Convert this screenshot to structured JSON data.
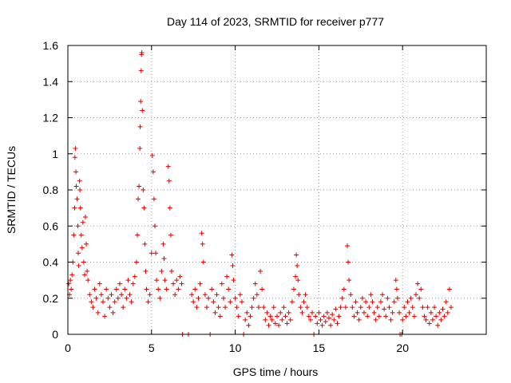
{
  "chart_data": {
    "type": "scatter",
    "title": "Day 114 of 2023, SRMTID for receiver p777",
    "xlabel": "GPS time / hours",
    "ylabel": "SRMTID / TECUs",
    "xlim": [
      0,
      25
    ],
    "ylim": [
      0,
      1.6
    ],
    "xticks": [
      0,
      5,
      10,
      15,
      20
    ],
    "xtick_labels": [
      "0",
      "5",
      "10",
      "15",
      "20"
    ],
    "yticks": [
      0,
      0.2,
      0.4,
      0.6,
      0.8,
      1,
      1.2,
      1.4,
      1.6
    ],
    "ytick_labels": [
      "0",
      "0.2",
      "0.4",
      "0.6",
      "0.8",
      "1",
      "1.2",
      "1.4",
      "1.6"
    ],
    "grid": true,
    "marker": "+",
    "color": "#dd0000",
    "series": [
      {
        "name": "SRMTID",
        "points": [
          [
            0.05,
            0.28
          ],
          [
            0.1,
            0.22
          ],
          [
            0.15,
            0.3
          ],
          [
            0.2,
            0.25
          ],
          [
            0.25,
            0.33
          ],
          [
            0.3,
            0.4
          ],
          [
            0.35,
            0.55
          ],
          [
            0.4,
            0.7
          ],
          [
            0.42,
            0.98
          ],
          [
            0.45,
            1.03
          ],
          [
            0.48,
            0.9
          ],
          [
            0.5,
            0.82
          ],
          [
            0.55,
            0.75
          ],
          [
            0.6,
            0.6
          ],
          [
            0.62,
            0.45
          ],
          [
            0.65,
            0.38
          ],
          [
            0.7,
            0.85
          ],
          [
            0.72,
            0.8
          ],
          [
            0.75,
            0.7
          ],
          [
            0.8,
            0.55
          ],
          [
            0.85,
            0.48
          ],
          [
            0.9,
            0.62
          ],
          [
            0.95,
            0.4
          ],
          [
            1.0,
            0.33
          ],
          [
            1.05,
            0.65
          ],
          [
            1.1,
            0.5
          ],
          [
            1.15,
            0.35
          ],
          [
            1.2,
            0.3
          ],
          [
            1.3,
            0.22
          ],
          [
            1.4,
            0.18
          ],
          [
            1.5,
            0.15
          ],
          [
            1.6,
            0.25
          ],
          [
            1.7,
            0.2
          ],
          [
            1.8,
            0.12
          ],
          [
            1.9,
            0.28
          ],
          [
            2.0,
            0.22
          ],
          [
            2.1,
            0.18
          ],
          [
            2.2,
            0.1
          ],
          [
            2.3,
            0.25
          ],
          [
            2.4,
            0.2
          ],
          [
            2.5,
            0.15
          ],
          [
            2.6,
            0.22
          ],
          [
            2.7,
            0.12
          ],
          [
            2.8,
            0.18
          ],
          [
            2.9,
            0.25
          ],
          [
            3.0,
            0.2
          ],
          [
            3.1,
            0.28
          ],
          [
            3.2,
            0.22
          ],
          [
            3.3,
            0.15
          ],
          [
            3.4,
            0.25
          ],
          [
            3.5,
            0.2
          ],
          [
            3.6,
            0.3
          ],
          [
            3.7,
            0.22
          ],
          [
            3.8,
            0.18
          ],
          [
            3.9,
            0.28
          ],
          [
            4.0,
            0.32
          ],
          [
            4.1,
            0.4
          ],
          [
            4.15,
            0.55
          ],
          [
            4.2,
            0.75
          ],
          [
            4.25,
            0.82
          ],
          [
            4.3,
            1.03
          ],
          [
            4.32,
            1.15
          ],
          [
            4.35,
            1.29
          ],
          [
            4.38,
            1.46
          ],
          [
            4.4,
            1.55
          ],
          [
            4.42,
            1.56
          ],
          [
            4.45,
            1.24
          ],
          [
            4.5,
            0.8
          ],
          [
            4.55,
            0.7
          ],
          [
            4.6,
            0.5
          ],
          [
            4.65,
            0.35
          ],
          [
            4.7,
            0.25
          ],
          [
            4.8,
            0.18
          ],
          [
            4.9,
            0.22
          ],
          [
            5.0,
            0.45
          ],
          [
            5.05,
            0.99
          ],
          [
            5.1,
            0.9
          ],
          [
            5.15,
            0.75
          ],
          [
            5.2,
            0.6
          ],
          [
            5.25,
            0.45
          ],
          [
            5.3,
            0.3
          ],
          [
            5.4,
            0.25
          ],
          [
            5.5,
            0.2
          ],
          [
            5.6,
            0.35
          ],
          [
            5.7,
            0.5
          ],
          [
            5.75,
            0.42
          ],
          [
            5.8,
            0.3
          ],
          [
            5.9,
            0.25
          ],
          [
            6.0,
            0.93
          ],
          [
            6.05,
            0.85
          ],
          [
            6.1,
            0.7
          ],
          [
            6.15,
            0.55
          ],
          [
            6.2,
            0.35
          ],
          [
            6.3,
            0.28
          ],
          [
            6.4,
            0.22
          ],
          [
            6.5,
            0.3
          ],
          [
            6.6,
            0.25
          ],
          [
            6.7,
            0.32
          ],
          [
            6.8,
            0.28
          ],
          [
            6.85,
            0.0
          ],
          [
            7.2,
            0.0
          ],
          [
            7.4,
            0.22
          ],
          [
            7.5,
            0.18
          ],
          [
            7.6,
            0.25
          ],
          [
            7.7,
            0.15
          ],
          [
            7.8,
            0.2
          ],
          [
            7.9,
            0.28
          ],
          [
            8.0,
            0.56
          ],
          [
            8.05,
            0.5
          ],
          [
            8.1,
            0.4
          ],
          [
            8.2,
            0.22
          ],
          [
            8.3,
            0.15
          ],
          [
            8.4,
            0.2
          ],
          [
            8.5,
            0.0
          ],
          [
            8.6,
            0.25
          ],
          [
            8.7,
            0.18
          ],
          [
            8.8,
            0.12
          ],
          [
            8.9,
            0.22
          ],
          [
            9.0,
            0.15
          ],
          [
            9.1,
            0.1
          ],
          [
            9.2,
            0.28
          ],
          [
            9.3,
            0.2
          ],
          [
            9.4,
            0.15
          ],
          [
            9.5,
            0.32
          ],
          [
            9.6,
            0.25
          ],
          [
            9.7,
            0.18
          ],
          [
            9.8,
            0.44
          ],
          [
            9.85,
            0.38
          ],
          [
            9.9,
            0.3
          ],
          [
            10.0,
            0.2
          ],
          [
            10.1,
            0.15
          ],
          [
            10.2,
            0.1
          ],
          [
            10.3,
            0.22
          ],
          [
            10.4,
            0.18
          ],
          [
            10.5,
            0.0
          ],
          [
            10.6,
            0.08
          ],
          [
            10.7,
            0.12
          ],
          [
            10.8,
            0.05
          ],
          [
            10.9,
            0.1
          ],
          [
            11.0,
            0.15
          ],
          [
            11.1,
            0.2
          ],
          [
            11.2,
            0.28
          ],
          [
            11.3,
            0.22
          ],
          [
            11.4,
            0.15
          ],
          [
            11.5,
            0.35
          ],
          [
            11.6,
            0.25
          ],
          [
            11.7,
            0.15
          ],
          [
            11.8,
            0.08
          ],
          [
            11.9,
            0.12
          ],
          [
            12.0,
            0.05
          ],
          [
            12.1,
            0.1
          ],
          [
            12.2,
            0.08
          ],
          [
            12.3,
            0.15
          ],
          [
            12.4,
            0.06
          ],
          [
            12.5,
            0.1
          ],
          [
            12.6,
            0.05
          ],
          [
            12.7,
            0.12
          ],
          [
            12.8,
            0.08
          ],
          [
            12.9,
            0.15
          ],
          [
            13.0,
            0.1
          ],
          [
            13.1,
            0.06
          ],
          [
            13.2,
            0.12
          ],
          [
            13.3,
            0.08
          ],
          [
            13.4,
            0.18
          ],
          [
            13.5,
            0.25
          ],
          [
            13.6,
            0.32
          ],
          [
            13.65,
            0.44
          ],
          [
            13.7,
            0.38
          ],
          [
            13.75,
            0.3
          ],
          [
            13.8,
            0.22
          ],
          [
            13.9,
            0.15
          ],
          [
            14.0,
            0.12
          ],
          [
            14.1,
            0.18
          ],
          [
            14.2,
            0.22
          ],
          [
            14.3,
            0.15
          ],
          [
            14.4,
            0.1
          ],
          [
            14.5,
            0.08
          ],
          [
            14.6,
            0.12
          ],
          [
            14.7,
            0.0
          ],
          [
            14.8,
            0.1
          ],
          [
            14.9,
            0.06
          ],
          [
            15.0,
            0.12
          ],
          [
            15.1,
            0.08
          ],
          [
            15.2,
            0.05
          ],
          [
            15.3,
            0.1
          ],
          [
            15.4,
            0.07
          ],
          [
            15.5,
            0.12
          ],
          [
            15.6,
            0.09
          ],
          [
            15.7,
            0.05
          ],
          [
            15.8,
            0.11
          ],
          [
            15.9,
            0.08
          ],
          [
            16.0,
            0.14
          ],
          [
            16.1,
            0.06
          ],
          [
            16.2,
            0.1
          ],
          [
            16.3,
            0.15
          ],
          [
            16.4,
            0.2
          ],
          [
            16.5,
            0.25
          ],
          [
            16.6,
            0.15
          ],
          [
            16.7,
            0.49
          ],
          [
            16.75,
            0.4
          ],
          [
            16.8,
            0.3
          ],
          [
            16.9,
            0.22
          ],
          [
            17.0,
            0.15
          ],
          [
            17.1,
            0.1
          ],
          [
            17.2,
            0.18
          ],
          [
            17.3,
            0.12
          ],
          [
            17.4,
            0.08
          ],
          [
            17.5,
            0.15
          ],
          [
            17.6,
            0.2
          ],
          [
            17.7,
            0.12
          ],
          [
            17.8,
            0.18
          ],
          [
            17.9,
            0.1
          ],
          [
            18.0,
            0.15
          ],
          [
            18.1,
            0.22
          ],
          [
            18.2,
            0.18
          ],
          [
            18.3,
            0.12
          ],
          [
            18.4,
            0.08
          ],
          [
            18.5,
            0.15
          ],
          [
            18.6,
            0.1
          ],
          [
            18.7,
            0.18
          ],
          [
            18.8,
            0.22
          ],
          [
            18.9,
            0.14
          ],
          [
            19.0,
            0.1
          ],
          [
            19.1,
            0.2
          ],
          [
            19.2,
            0.15
          ],
          [
            19.3,
            0.08
          ],
          [
            19.4,
            0.12
          ],
          [
            19.5,
            0.18
          ],
          [
            19.6,
            0.3
          ],
          [
            19.65,
            0.25
          ],
          [
            19.7,
            0.2
          ],
          [
            19.8,
            0.12
          ],
          [
            19.85,
            0.0
          ],
          [
            19.95,
            0.0
          ],
          [
            20.0,
            0.08
          ],
          [
            20.1,
            0.15
          ],
          [
            20.2,
            0.1
          ],
          [
            20.3,
            0.18
          ],
          [
            20.4,
            0.12
          ],
          [
            20.5,
            0.2
          ],
          [
            20.6,
            0.15
          ],
          [
            20.7,
            0.1
          ],
          [
            20.8,
            0.22
          ],
          [
            20.9,
            0.28
          ],
          [
            21.0,
            0.2
          ],
          [
            21.1,
            0.25
          ],
          [
            21.2,
            0.15
          ],
          [
            21.3,
            0.1
          ],
          [
            21.4,
            0.08
          ],
          [
            21.5,
            0.15
          ],
          [
            21.6,
            0.06
          ],
          [
            21.7,
            0.12
          ],
          [
            21.8,
            0.08
          ],
          [
            21.9,
            0.15
          ],
          [
            22.0,
            0.1
          ],
          [
            22.1,
            0.05
          ],
          [
            22.2,
            0.12
          ],
          [
            22.3,
            0.08
          ],
          [
            22.4,
            0.14
          ],
          [
            22.5,
            0.1
          ],
          [
            22.6,
            0.18
          ],
          [
            22.7,
            0.12
          ],
          [
            22.8,
            0.25
          ],
          [
            22.9,
            0.15
          ]
        ]
      }
    ]
  }
}
